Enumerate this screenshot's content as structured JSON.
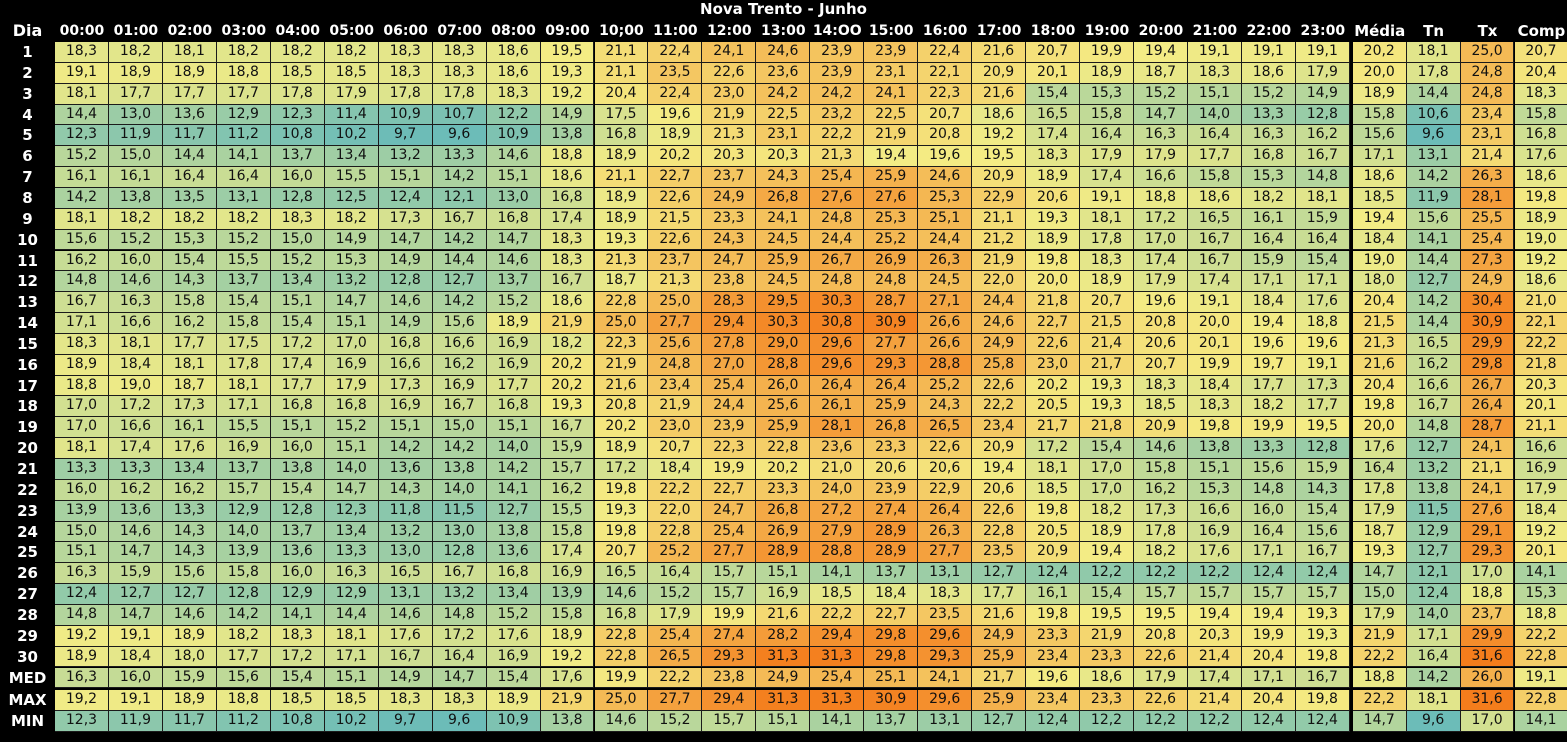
{
  "title": "Nova Trento - Junho",
  "corner_label": "Dia",
  "hours": [
    "00:00",
    "01:00",
    "02:00",
    "03:00",
    "04:00",
    "05:00",
    "06:00",
    "07:00",
    "08:00",
    "09:00",
    "10;00",
    "11:00",
    "12:00",
    "13:00",
    "14:OO",
    "15:00",
    "16:00",
    "17:00",
    "18:00",
    "19:00",
    "20:00",
    "21:00",
    "22:00",
    "23:00"
  ],
  "summary_cols": [
    "Média",
    "Tn",
    "Tx",
    "Comp"
  ],
  "chart_data": {
    "type": "heatmap",
    "title": "Nova Trento - Junho",
    "row_labels": [
      "1",
      "2",
      "3",
      "4",
      "5",
      "6",
      "7",
      "8",
      "9",
      "10",
      "11",
      "12",
      "13",
      "14",
      "15",
      "16",
      "17",
      "18",
      "19",
      "20",
      "21",
      "22",
      "23",
      "24",
      "25",
      "26",
      "27",
      "28",
      "29",
      "30",
      "MED",
      "MAX",
      "MIN"
    ],
    "col_labels": [
      "00:00",
      "01:00",
      "02:00",
      "03:00",
      "04:00",
      "05:00",
      "06:00",
      "07:00",
      "08:00",
      "09:00",
      "10;00",
      "11:00",
      "12:00",
      "13:00",
      "14:OO",
      "15:00",
      "16:00",
      "17:00",
      "18:00",
      "19:00",
      "20:00",
      "21:00",
      "22:00",
      "23:00",
      "Média",
      "Tn",
      "Tx",
      "Comp"
    ],
    "values": [
      [
        "18,3",
        "18,2",
        "18,1",
        "18,2",
        "18,2",
        "18,2",
        "18,3",
        "18,3",
        "18,6",
        "19,5",
        "21,1",
        "22,4",
        "24,1",
        "24,6",
        "23,9",
        "23,9",
        "22,4",
        "21,6",
        "20,7",
        "19,9",
        "19,4",
        "19,1",
        "19,1",
        "19,1",
        "20,2",
        "18,1",
        "25,0",
        "20,7"
      ],
      [
        "19,1",
        "18,9",
        "18,9",
        "18,8",
        "18,5",
        "18,5",
        "18,3",
        "18,3",
        "18,6",
        "19,3",
        "21,1",
        "23,5",
        "22,6",
        "23,6",
        "23,9",
        "23,1",
        "22,1",
        "20,9",
        "20,1",
        "18,9",
        "18,7",
        "18,3",
        "18,6",
        "17,9",
        "20,0",
        "17,8",
        "24,8",
        "20,4"
      ],
      [
        "18,1",
        "17,7",
        "17,7",
        "17,7",
        "17,8",
        "17,9",
        "17,8",
        "17,8",
        "18,3",
        "19,2",
        "20,4",
        "22,4",
        "23,0",
        "24,2",
        "24,2",
        "24,1",
        "22,3",
        "21,6",
        "15,4",
        "15,3",
        "15,2",
        "15,1",
        "15,2",
        "14,9",
        "18,9",
        "14,4",
        "24,8",
        "18,3"
      ],
      [
        "14,4",
        "13,0",
        "13,6",
        "12,9",
        "12,3",
        "11,4",
        "10,9",
        "10,7",
        "12,2",
        "14,9",
        "17,5",
        "19,6",
        "21,9",
        "22,5",
        "23,2",
        "22,5",
        "20,7",
        "18,6",
        "16,5",
        "15,8",
        "14,7",
        "14,0",
        "13,3",
        "12,8",
        "15,8",
        "10,6",
        "23,4",
        "15,8"
      ],
      [
        "12,3",
        "11,9",
        "11,7",
        "11,2",
        "10,8",
        "10,2",
        "9,7",
        "9,6",
        "10,9",
        "13,8",
        "16,8",
        "18,9",
        "21,3",
        "23,1",
        "22,2",
        "21,9",
        "20,8",
        "19,2",
        "17,4",
        "16,4",
        "16,3",
        "16,4",
        "16,3",
        "16,2",
        "15,6",
        "9,6",
        "23,1",
        "16,8"
      ],
      [
        "15,2",
        "15,0",
        "14,4",
        "14,1",
        "13,7",
        "13,4",
        "13,2",
        "13,3",
        "14,6",
        "18,8",
        "18,9",
        "20,2",
        "20,3",
        "20,3",
        "21,3",
        "19,4",
        "19,6",
        "19,5",
        "18,3",
        "17,9",
        "17,9",
        "17,7",
        "16,8",
        "16,7",
        "17,1",
        "13,1",
        "21,4",
        "17,6"
      ],
      [
        "16,1",
        "16,1",
        "16,4",
        "16,4",
        "16,0",
        "15,5",
        "15,1",
        "14,2",
        "15,1",
        "18,6",
        "21,1",
        "22,7",
        "23,7",
        "24,3",
        "25,4",
        "25,9",
        "24,6",
        "20,9",
        "18,9",
        "17,4",
        "16,6",
        "15,8",
        "15,3",
        "14,8",
        "18,6",
        "14,2",
        "26,3",
        "18,6"
      ],
      [
        "14,2",
        "13,8",
        "13,5",
        "13,1",
        "12,8",
        "12,5",
        "12,4",
        "12,1",
        "13,0",
        "16,8",
        "18,9",
        "22,6",
        "24,9",
        "26,8",
        "27,6",
        "27,6",
        "25,3",
        "22,9",
        "20,6",
        "19,1",
        "18,8",
        "18,6",
        "18,2",
        "18,1",
        "18,5",
        "11,9",
        "28,1",
        "19,8"
      ],
      [
        "18,1",
        "18,2",
        "18,2",
        "18,2",
        "18,3",
        "18,2",
        "17,3",
        "16,7",
        "16,8",
        "17,4",
        "18,9",
        "21,5",
        "23,3",
        "24,1",
        "24,8",
        "25,3",
        "25,1",
        "21,1",
        "19,3",
        "18,1",
        "17,2",
        "16,5",
        "16,1",
        "15,9",
        "19,4",
        "15,6",
        "25,5",
        "18,9"
      ],
      [
        "15,6",
        "15,2",
        "15,3",
        "15,2",
        "15,0",
        "14,9",
        "14,7",
        "14,2",
        "14,7",
        "18,3",
        "19,3",
        "22,6",
        "24,3",
        "24,5",
        "24,4",
        "25,2",
        "24,4",
        "21,2",
        "18,9",
        "17,8",
        "17,0",
        "16,7",
        "16,4",
        "16,4",
        "18,4",
        "14,1",
        "25,4",
        "19,0"
      ],
      [
        "16,2",
        "16,0",
        "15,4",
        "15,5",
        "15,2",
        "15,3",
        "14,9",
        "14,4",
        "14,6",
        "18,3",
        "21,3",
        "23,7",
        "24,7",
        "25,9",
        "26,7",
        "26,9",
        "26,3",
        "21,9",
        "19,8",
        "18,3",
        "17,4",
        "16,7",
        "15,9",
        "15,4",
        "19,0",
        "14,4",
        "27,3",
        "19,2"
      ],
      [
        "14,8",
        "14,6",
        "14,3",
        "13,7",
        "13,4",
        "13,2",
        "12,8",
        "12,7",
        "13,7",
        "16,7",
        "18,7",
        "21,3",
        "23,8",
        "24,5",
        "24,8",
        "24,8",
        "24,5",
        "22,0",
        "20,0",
        "18,9",
        "17,9",
        "17,4",
        "17,1",
        "17,1",
        "18,0",
        "12,7",
        "24,9",
        "18,6"
      ],
      [
        "16,7",
        "16,3",
        "15,8",
        "15,4",
        "15,1",
        "14,7",
        "14,6",
        "14,2",
        "15,2",
        "18,6",
        "22,8",
        "25,0",
        "28,3",
        "29,5",
        "30,3",
        "28,7",
        "27,1",
        "24,4",
        "21,8",
        "20,7",
        "19,6",
        "19,1",
        "18,4",
        "17,6",
        "20,4",
        "14,2",
        "30,4",
        "21,0"
      ],
      [
        "17,1",
        "16,6",
        "16,2",
        "15,8",
        "15,4",
        "15,1",
        "14,9",
        "15,6",
        "18,9",
        "21,9",
        "25,0",
        "27,7",
        "29,4",
        "30,3",
        "30,8",
        "30,9",
        "26,6",
        "24,6",
        "22,7",
        "21,5",
        "20,8",
        "20,0",
        "19,4",
        "18,8",
        "21,5",
        "14,4",
        "30,9",
        "22,1"
      ],
      [
        "18,3",
        "18,1",
        "17,7",
        "17,5",
        "17,2",
        "17,0",
        "16,8",
        "16,6",
        "16,9",
        "18,2",
        "22,3",
        "25,6",
        "27,8",
        "29,0",
        "29,6",
        "27,7",
        "26,6",
        "24,9",
        "22,6",
        "21,4",
        "20,6",
        "20,1",
        "19,6",
        "19,6",
        "21,3",
        "16,5",
        "29,9",
        "22,2"
      ],
      [
        "18,9",
        "18,4",
        "18,1",
        "17,8",
        "17,4",
        "16,9",
        "16,6",
        "16,2",
        "16,9",
        "20,2",
        "21,9",
        "24,8",
        "27,0",
        "28,8",
        "29,6",
        "29,3",
        "28,8",
        "25,8",
        "23,0",
        "21,7",
        "20,7",
        "19,9",
        "19,7",
        "19,1",
        "21,6",
        "16,2",
        "29,8",
        "21,8"
      ],
      [
        "18,8",
        "19,0",
        "18,7",
        "18,1",
        "17,7",
        "17,9",
        "17,3",
        "16,9",
        "17,7",
        "20,2",
        "21,6",
        "23,4",
        "25,4",
        "26,0",
        "26,4",
        "26,4",
        "25,2",
        "22,6",
        "20,2",
        "19,3",
        "18,3",
        "18,4",
        "17,7",
        "17,3",
        "20,4",
        "16,6",
        "26,7",
        "20,3"
      ],
      [
        "17,0",
        "17,2",
        "17,3",
        "17,1",
        "16,8",
        "16,8",
        "16,9",
        "16,7",
        "16,8",
        "19,3",
        "20,8",
        "21,9",
        "24,4",
        "25,6",
        "26,1",
        "25,9",
        "24,3",
        "22,2",
        "20,5",
        "19,3",
        "18,5",
        "18,3",
        "18,2",
        "17,7",
        "19,8",
        "16,7",
        "26,4",
        "20,1"
      ],
      [
        "17,0",
        "16,6",
        "16,1",
        "15,5",
        "15,1",
        "15,2",
        "15,1",
        "15,0",
        "15,1",
        "16,7",
        "20,2",
        "23,0",
        "23,9",
        "25,9",
        "28,1",
        "26,8",
        "26,5",
        "23,4",
        "21,7",
        "21,8",
        "20,9",
        "19,8",
        "19,9",
        "19,5",
        "20,0",
        "14,8",
        "28,7",
        "21,1"
      ],
      [
        "18,1",
        "17,4",
        "17,6",
        "16,9",
        "16,0",
        "15,1",
        "14,2",
        "14,2",
        "14,0",
        "15,9",
        "18,9",
        "20,7",
        "22,3",
        "22,8",
        "23,6",
        "23,3",
        "22,6",
        "20,9",
        "17,2",
        "15,4",
        "14,6",
        "13,8",
        "13,3",
        "12,8",
        "17,6",
        "12,7",
        "24,1",
        "16,6"
      ],
      [
        "13,3",
        "13,3",
        "13,4",
        "13,7",
        "13,8",
        "14,0",
        "13,6",
        "13,8",
        "14,2",
        "15,7",
        "17,2",
        "18,4",
        "19,9",
        "20,2",
        "21,0",
        "20,6",
        "20,6",
        "19,4",
        "18,1",
        "17,0",
        "15,8",
        "15,1",
        "15,6",
        "15,9",
        "16,4",
        "13,2",
        "21,1",
        "16,9"
      ],
      [
        "16,0",
        "16,2",
        "16,2",
        "15,7",
        "15,4",
        "14,7",
        "14,3",
        "14,0",
        "14,1",
        "16,2",
        "19,8",
        "22,2",
        "22,7",
        "23,3",
        "24,0",
        "23,9",
        "22,9",
        "20,6",
        "18,5",
        "17,0",
        "16,2",
        "15,3",
        "14,8",
        "14,3",
        "17,8",
        "13,8",
        "24,1",
        "17,9"
      ],
      [
        "13,9",
        "13,6",
        "13,3",
        "12,9",
        "12,8",
        "12,3",
        "11,8",
        "11,5",
        "12,7",
        "15,5",
        "19,3",
        "22,0",
        "24,7",
        "26,8",
        "27,2",
        "27,4",
        "26,4",
        "22,6",
        "19,8",
        "18,2",
        "17,3",
        "16,6",
        "16,0",
        "15,4",
        "17,9",
        "11,5",
        "27,6",
        "18,4"
      ],
      [
        "15,0",
        "14,6",
        "14,3",
        "14,0",
        "13,7",
        "13,4",
        "13,2",
        "13,0",
        "13,8",
        "15,8",
        "19,8",
        "22,8",
        "25,4",
        "26,9",
        "27,9",
        "28,9",
        "26,3",
        "22,8",
        "20,5",
        "18,9",
        "17,8",
        "16,9",
        "16,4",
        "15,6",
        "18,7",
        "12,9",
        "29,1",
        "19,2"
      ],
      [
        "15,1",
        "14,7",
        "14,3",
        "13,9",
        "13,6",
        "13,3",
        "13,0",
        "12,8",
        "13,6",
        "17,4",
        "20,7",
        "25,2",
        "27,7",
        "28,9",
        "28,8",
        "28,9",
        "27,7",
        "23,5",
        "20,9",
        "19,4",
        "18,2",
        "17,6",
        "17,1",
        "16,7",
        "19,3",
        "12,7",
        "29,3",
        "20,1"
      ],
      [
        "16,3",
        "15,9",
        "15,6",
        "15,8",
        "16,0",
        "16,3",
        "16,5",
        "16,7",
        "16,8",
        "16,9",
        "16,5",
        "16,4",
        "15,7",
        "15,1",
        "14,1",
        "13,7",
        "13,1",
        "12,7",
        "12,4",
        "12,2",
        "12,2",
        "12,2",
        "12,4",
        "12,4",
        "14,7",
        "12,1",
        "17,0",
        "14,1"
      ],
      [
        "12,4",
        "12,7",
        "12,7",
        "12,8",
        "12,9",
        "12,9",
        "13,1",
        "13,2",
        "13,4",
        "13,9",
        "14,6",
        "15,2",
        "15,7",
        "16,9",
        "18,5",
        "18,4",
        "18,3",
        "17,7",
        "16,1",
        "15,4",
        "15,7",
        "15,7",
        "15,7",
        "15,7",
        "15,0",
        "12,4",
        "18,8",
        "15,3"
      ],
      [
        "14,8",
        "14,7",
        "14,6",
        "14,2",
        "14,1",
        "14,4",
        "14,6",
        "14,8",
        "15,2",
        "15,8",
        "16,8",
        "17,9",
        "19,9",
        "21,6",
        "22,2",
        "22,7",
        "23,5",
        "21,6",
        "19,8",
        "19,5",
        "19,5",
        "19,4",
        "19,4",
        "19,3",
        "17,9",
        "14,0",
        "23,7",
        "18,8"
      ],
      [
        "19,2",
        "19,1",
        "18,9",
        "18,2",
        "18,3",
        "18,1",
        "17,6",
        "17,2",
        "17,6",
        "18,9",
        "22,8",
        "25,4",
        "27,4",
        "28,2",
        "29,4",
        "29,8",
        "29,6",
        "24,9",
        "23,3",
        "21,9",
        "20,8",
        "20,3",
        "19,9",
        "19,3",
        "21,9",
        "17,1",
        "29,9",
        "22,2"
      ],
      [
        "18,9",
        "18,4",
        "18,0",
        "17,7",
        "17,2",
        "17,1",
        "16,7",
        "16,4",
        "16,9",
        "19,2",
        "22,8",
        "26,5",
        "29,3",
        "31,3",
        "31,3",
        "29,8",
        "29,3",
        "25,9",
        "23,4",
        "23,3",
        "22,6",
        "21,4",
        "20,4",
        "19,8",
        "22,2",
        "16,4",
        "31,6",
        "22,8"
      ],
      [
        "16,3",
        "16,0",
        "15,9",
        "15,6",
        "15,4",
        "15,1",
        "14,9",
        "14,7",
        "15,4",
        "17,6",
        "19,9",
        "22,2",
        "23,8",
        "24,9",
        "25,4",
        "25,1",
        "24,1",
        "21,7",
        "19,6",
        "18,6",
        "17,9",
        "17,4",
        "17,1",
        "16,7",
        "18,8",
        "14,2",
        "26,0",
        "19,1"
      ],
      [
        "19,2",
        "19,1",
        "18,9",
        "18,8",
        "18,5",
        "18,5",
        "18,3",
        "18,3",
        "18,9",
        "21,9",
        "25,0",
        "27,7",
        "29,4",
        "31,3",
        "31,3",
        "30,9",
        "29,6",
        "25,9",
        "23,4",
        "23,3",
        "22,6",
        "21,4",
        "20,4",
        "19,8",
        "22,2",
        "18,1",
        "31,6",
        "22,8"
      ],
      [
        "12,3",
        "11,9",
        "11,7",
        "11,2",
        "10,8",
        "10,2",
        "9,7",
        "9,6",
        "10,9",
        "13,8",
        "14,6",
        "15,2",
        "15,7",
        "15,1",
        "14,1",
        "13,7",
        "13,1",
        "12,7",
        "12,4",
        "12,2",
        "12,2",
        "12,2",
        "12,4",
        "12,4",
        "14,7",
        "9,6",
        "17,0",
        "14,1"
      ]
    ],
    "color_scale": {
      "low": "#6cbcb8",
      "mid": "#f4ec84",
      "high": "#f47d1c",
      "range": [
        9.6,
        31.6
      ]
    }
  }
}
